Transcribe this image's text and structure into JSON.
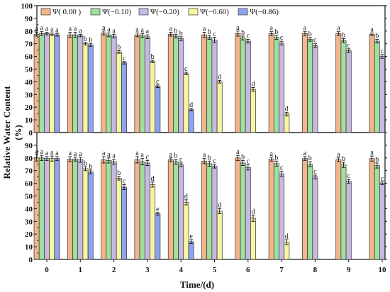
{
  "chart_data": {
    "type": "bar",
    "ylabel": "Relative Water Content",
    "ylabel_unit": "(%)",
    "xlabel": "Time/(d)",
    "categories": [
      "0",
      "1",
      "2",
      "3",
      "4",
      "5",
      "6",
      "7",
      "8",
      "9",
      "10"
    ],
    "ylim": [
      0,
      100
    ],
    "yticks": [
      0,
      10,
      20,
      30,
      40,
      50,
      60,
      70,
      80,
      90,
      100
    ],
    "legend": {
      "placement": "top-left",
      "entries": [
        "Ψ( 0.00 )",
        "Ψ(−0.10)",
        "Ψ(−0.20)",
        "Ψ(−0.60)",
        "Ψ(−0.86)"
      ]
    },
    "series_colors": [
      "#f2b58c",
      "#9fe09f",
      "#c8b9e3",
      "#f6f6a0",
      "#8ea2ef"
    ],
    "panels": [
      {
        "name": "top",
        "series": [
          {
            "name": "Ψ( 0.00 )",
            "values": [
              77.5,
              77,
              78.5,
              77,
              77.5,
              77,
              78,
              78,
              78,
              78,
              77.5
            ],
            "errors": [
              1.5,
              2,
              1.5,
              1.5,
              1.5,
              2,
              2,
              1.5,
              1.5,
              1.5,
              1
            ],
            "letters": [
              "a",
              "a",
              "a",
              "a",
              "a",
              "a",
              "a",
              "a",
              "a",
              "a",
              "a"
            ]
          },
          {
            "name": "Ψ(−0.10)",
            "values": [
              78,
              77,
              77,
              76.5,
              76,
              75,
              74.5,
              75,
              73.5,
              72.5,
              72
            ],
            "errors": [
              1.5,
              2,
              1.5,
              1.5,
              1.5,
              1.5,
              1.5,
              1.5,
              1.5,
              1.5,
              1.5
            ],
            "letters": [
              "a",
              "a",
              "a",
              "a",
              "b",
              "b",
              "b",
              "b",
              "b",
              "b",
              "b"
            ]
          },
          {
            "name": "Ψ(−0.20)",
            "values": [
              78,
              76.5,
              76,
              75.5,
              74,
              73,
              72,
              70.5,
              68.5,
              64.5,
              60
            ],
            "errors": [
              1,
              1,
              1.5,
              1.5,
              1.5,
              2,
              1.5,
              1.5,
              1.5,
              1.5,
              1.5
            ],
            "letters": [
              "a",
              "a",
              "a",
              "a",
              "b",
              "c",
              "c",
              "c",
              "c",
              "c",
              "c"
            ]
          },
          {
            "name": "Ψ(−0.60)",
            "values": [
              77.5,
              70,
              63.5,
              56,
              46.5,
              40,
              34,
              14.5,
              null,
              null,
              null
            ],
            "errors": [
              1,
              1,
              1,
              1,
              1,
              1,
              1.5,
              1.5,
              null,
              null,
              null
            ],
            "letters": [
              "a",
              "b",
              "b",
              "b",
              "c",
              "d",
              "d",
              "d",
              "",
              "",
              ""
            ]
          },
          {
            "name": "Ψ(−0.86)",
            "values": [
              77,
              69,
              55,
              36.5,
              18,
              null,
              null,
              null,
              null,
              null,
              null
            ],
            "errors": [
              1,
              1,
              1,
              1,
              1,
              null,
              null,
              null,
              null,
              null,
              null
            ],
            "letters": [
              "a",
              "b",
              "c",
              "c",
              "d",
              "",
              "",
              "",
              "",
              "",
              ""
            ]
          }
        ]
      },
      {
        "name": "bottom",
        "series": [
          {
            "name": "Ψ( 0.00 )",
            "values": [
              80,
              79,
              78.5,
              78.5,
              78.5,
              77.5,
              80,
              79,
              79.5,
              78.5,
              79.5
            ],
            "errors": [
              2.5,
              2,
              2.5,
              2.5,
              1.5,
              2,
              2,
              1.5,
              1.5,
              1.5,
              2
            ],
            "letters": [
              "a",
              "a",
              "a",
              "a",
              "a",
              "a",
              "a",
              "a",
              "a",
              "a",
              "a"
            ]
          },
          {
            "name": "Ψ(−0.10)",
            "values": [
              80,
              79,
              78,
              77,
              77,
              75.5,
              76,
              75.5,
              75,
              74.5,
              74
            ],
            "errors": [
              2,
              1.5,
              2,
              2.5,
              2,
              2,
              2,
              2,
              2,
              2,
              2
            ],
            "letters": [
              "a",
              "a",
              "a",
              "a",
              "b",
              "b",
              "b",
              "b",
              "b",
              "b",
              "b"
            ]
          },
          {
            "name": "Ψ(−0.20)",
            "values": [
              79.5,
              78.5,
              77,
              76,
              74.5,
              73.5,
              72.5,
              67.5,
              65,
              61.5,
              60
            ],
            "errors": [
              1.5,
              2,
              2,
              2,
              1.5,
              1.5,
              2,
              2,
              1.5,
              1.5,
              1
            ],
            "letters": [
              "a",
              "a",
              "a",
              "c",
              "c",
              "c",
              "c",
              "c",
              "c",
              "c",
              "c"
            ]
          },
          {
            "name": "Ψ(−0.60)",
            "values": [
              79.5,
              71.5,
              64,
              59,
              45,
              38,
              32.5,
              13.5,
              null,
              null,
              null
            ],
            "errors": [
              2,
              1.5,
              1.5,
              2,
              2,
              2,
              2.5,
              2,
              null,
              null,
              null
            ],
            "letters": [
              "a",
              "b",
              "b",
              "d",
              "d",
              "d",
              "d",
              "d",
              "",
              "",
              ""
            ]
          },
          {
            "name": "Ψ(−0.86)",
            "values": [
              79.5,
              69,
              57,
              36,
              14,
              null,
              null,
              null,
              null,
              null,
              null
            ],
            "errors": [
              1.5,
              1.5,
              2,
              1,
              1.5,
              null,
              null,
              null,
              null,
              null,
              null
            ],
            "letters": [
              "a",
              "b",
              "c",
              "e",
              "e",
              "",
              "",
              "",
              "",
              "",
              ""
            ]
          }
        ]
      }
    ]
  }
}
